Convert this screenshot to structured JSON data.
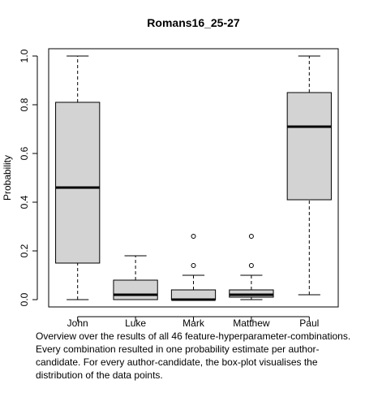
{
  "chart_data": {
    "type": "boxplot",
    "title": "Romans16_25-27",
    "xlabel": "",
    "ylabel": "Probability",
    "ylim": [
      -0.03,
      1.03
    ],
    "yticks": [
      "0.0",
      "0.2",
      "0.4",
      "0.6",
      "0.8",
      "1.0"
    ],
    "ytick_values": [
      0.0,
      0.2,
      0.4,
      0.6,
      0.8,
      1.0
    ],
    "grid": false,
    "categories": [
      "John",
      "Luke",
      "Mark",
      "Matthew",
      "Paul"
    ],
    "boxes": [
      {
        "name": "John",
        "min": 0.0,
        "q1": 0.15,
        "median": 0.46,
        "q3": 0.81,
        "max": 1.0,
        "outliers": []
      },
      {
        "name": "Luke",
        "min": 0.0,
        "q1": 0.0,
        "median": 0.02,
        "q3": 0.08,
        "max": 0.18,
        "outliers": []
      },
      {
        "name": "Mark",
        "min": 0.0,
        "q1": 0.0,
        "median": 0.0,
        "q3": 0.04,
        "max": 0.1,
        "outliers": [
          0.14,
          0.26
        ]
      },
      {
        "name": "Matthew",
        "min": 0.0,
        "q1": 0.01,
        "median": 0.02,
        "q3": 0.04,
        "max": 0.1,
        "outliers": [
          0.14,
          0.26
        ]
      },
      {
        "name": "Paul",
        "min": 0.02,
        "q1": 0.41,
        "median": 0.71,
        "q3": 0.85,
        "max": 1.0,
        "outliers": []
      }
    ],
    "colors": {
      "box_fill": "#d3d3d3",
      "stroke": "#000000"
    }
  },
  "caption": {
    "lines": [
      "Overview over the results of all 46 feature-hyperparameter-combinations.",
      "Every combination resulted in one probability estimate per author-",
      "candidate. For every author-candidate, the box-plot visualises the",
      "distribution of the data points."
    ]
  }
}
